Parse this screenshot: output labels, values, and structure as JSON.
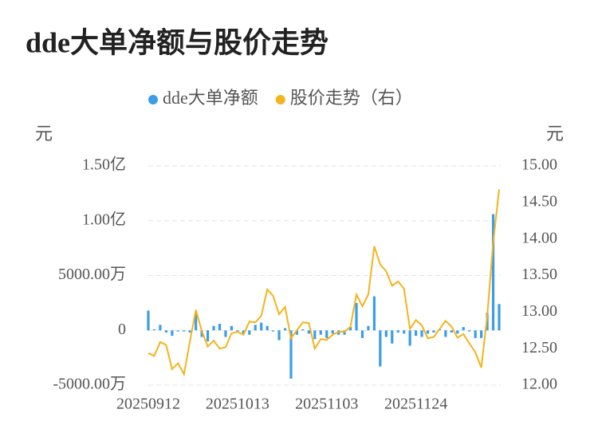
{
  "chart_data": {
    "type": "bar-line",
    "title": "dde大单净额与股价走势",
    "y_unit": "元",
    "y2_unit": "元",
    "categories": [
      "20250912",
      null,
      null,
      null,
      null,
      null,
      null,
      null,
      null,
      null,
      null,
      null,
      null,
      null,
      null,
      "20251013",
      null,
      null,
      null,
      null,
      null,
      null,
      null,
      null,
      null,
      null,
      null,
      null,
      null,
      null,
      "20251103",
      null,
      null,
      null,
      null,
      null,
      null,
      null,
      null,
      null,
      null,
      null,
      null,
      null,
      null,
      "20251124",
      null,
      null,
      null,
      null,
      null,
      null,
      null,
      null,
      null,
      null,
      null,
      null,
      null,
      null
    ],
    "series": [
      {
        "name": "dde大单净额",
        "type": "bar",
        "color": "#3b9de6",
        "values": [
          18000000,
          1000000,
          5000000,
          -2000000,
          -5000000,
          -1000000,
          -1000000,
          -2000000,
          16000000,
          -6000000,
          -10000000,
          4000000,
          6000000,
          -6000000,
          4000000,
          -2000000,
          -3000000,
          -4000000,
          5000000,
          7000000,
          4000000,
          -1000000,
          -9000000,
          2000000,
          -44000000,
          -4000000,
          1000000,
          -3000000,
          -8000000,
          -4000000,
          -7000000,
          -3000000,
          -4000000,
          -4000000,
          3000000,
          25000000,
          -7000000,
          4000000,
          31000000,
          -33000000,
          -6000000,
          -12000000,
          -2000000,
          -3000000,
          -14000000,
          -5000000,
          -6000000,
          -3000000,
          -2000000,
          1000000,
          -6000000,
          -2000000,
          -3000000,
          3000000,
          -1000000,
          -7000000,
          -7000000,
          16000000,
          106000000,
          24000000
        ]
      },
      {
        "name": "股价走势（右）",
        "type": "line",
        "axis": "y2",
        "color": "#f5b31c",
        "values": [
          12.44,
          12.4,
          12.59,
          12.55,
          12.22,
          12.3,
          12.15,
          12.6,
          13.03,
          12.74,
          12.53,
          12.61,
          12.5,
          12.52,
          12.71,
          12.73,
          12.69,
          12.87,
          12.86,
          12.95,
          13.31,
          13.22,
          12.97,
          13.07,
          12.64,
          12.75,
          12.86,
          12.85,
          12.5,
          12.63,
          12.62,
          12.69,
          12.73,
          12.73,
          12.8,
          13.24,
          13.08,
          13.24,
          13.9,
          13.65,
          13.56,
          13.36,
          13.42,
          13.32,
          12.77,
          12.89,
          12.82,
          12.64,
          12.66,
          12.77,
          12.88,
          12.8,
          12.65,
          12.7,
          12.57,
          12.45,
          12.24,
          12.95,
          13.95,
          14.68
        ]
      }
    ],
    "ylim": [
      -50000000,
      150000000
    ],
    "yticks": [
      {
        "value": -50000000,
        "label": "-5000.00万"
      },
      0,
      {
        "value": 50000000,
        "label": "5000.00万"
      },
      {
        "value": 100000000,
        "label": "1.00亿"
      },
      {
        "value": 150000000,
        "label": "1.50亿"
      }
    ],
    "y2lim": [
      12,
      15
    ],
    "y2ticks": [
      {
        "value": 12,
        "label": "12.00"
      },
      {
        "value": 12.5,
        "label": "12.50"
      },
      {
        "value": 13,
        "label": "13.00"
      },
      {
        "value": 13.5,
        "label": "13.50"
      },
      {
        "value": 14,
        "label": "14.00"
      },
      {
        "value": 14.5,
        "label": "14.50"
      },
      {
        "value": 15,
        "label": "15.00"
      }
    ],
    "grid": true
  }
}
